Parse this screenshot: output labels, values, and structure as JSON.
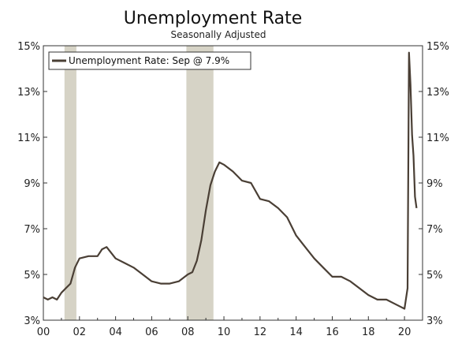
{
  "chart_data": {
    "type": "line",
    "title": "Unemployment Rate",
    "subtitle": "Seasonally Adjusted",
    "ylim": [
      3,
      15
    ],
    "xlim": [
      2000,
      2021
    ],
    "y_ticks": [
      3,
      5,
      7,
      9,
      11,
      13,
      15
    ],
    "y_tick_labels": [
      "3%",
      "5%",
      "7%",
      "9%",
      "11%",
      "13%",
      "15%"
    ],
    "x_ticks": [
      2000,
      2002,
      2004,
      2006,
      2008,
      2010,
      2012,
      2014,
      2016,
      2018,
      2020
    ],
    "x_tick_labels": [
      "00",
      "02",
      "04",
      "06",
      "08",
      "10",
      "12",
      "14",
      "16",
      "18",
      "20"
    ],
    "grid": false,
    "legend_position": "top-left",
    "recessions": [
      {
        "start": 2001.17,
        "end": 2001.83
      },
      {
        "start": 2007.92,
        "end": 2009.42
      }
    ],
    "colors": {
      "line": "#4a3f35",
      "recession": "#d6d3c6",
      "axis": "#333333"
    },
    "series": [
      {
        "name": "Unemployment Rate: Sep @ 7.9%",
        "x": [
          2000.0,
          2000.25,
          2000.5,
          2000.75,
          2001.0,
          2001.25,
          2001.5,
          2001.75,
          2002.0,
          2002.5,
          2003.0,
          2003.25,
          2003.5,
          2004.0,
          2004.5,
          2005.0,
          2005.5,
          2006.0,
          2006.5,
          2007.0,
          2007.5,
          2008.0,
          2008.25,
          2008.5,
          2008.75,
          2009.0,
          2009.25,
          2009.5,
          2009.75,
          2010.0,
          2010.5,
          2011.0,
          2011.5,
          2012.0,
          2012.5,
          2013.0,
          2013.5,
          2014.0,
          2014.5,
          2015.0,
          2015.5,
          2016.0,
          2016.5,
          2017.0,
          2017.5,
          2018.0,
          2018.5,
          2019.0,
          2019.5,
          2020.0,
          2020.17,
          2020.25,
          2020.33,
          2020.42,
          2020.5,
          2020.58,
          2020.67
        ],
        "values": [
          4.0,
          3.9,
          4.0,
          3.9,
          4.2,
          4.4,
          4.6,
          5.3,
          5.7,
          5.8,
          5.8,
          6.1,
          6.2,
          5.7,
          5.5,
          5.3,
          5.0,
          4.7,
          4.6,
          4.6,
          4.7,
          5.0,
          5.1,
          5.6,
          6.5,
          7.8,
          8.9,
          9.5,
          9.9,
          9.8,
          9.5,
          9.1,
          9.0,
          8.3,
          8.2,
          7.9,
          7.5,
          6.7,
          6.2,
          5.7,
          5.3,
          4.9,
          4.9,
          4.7,
          4.4,
          4.1,
          3.9,
          3.9,
          3.7,
          3.5,
          4.4,
          14.7,
          13.3,
          11.1,
          10.2,
          8.4,
          7.9
        ]
      }
    ]
  }
}
